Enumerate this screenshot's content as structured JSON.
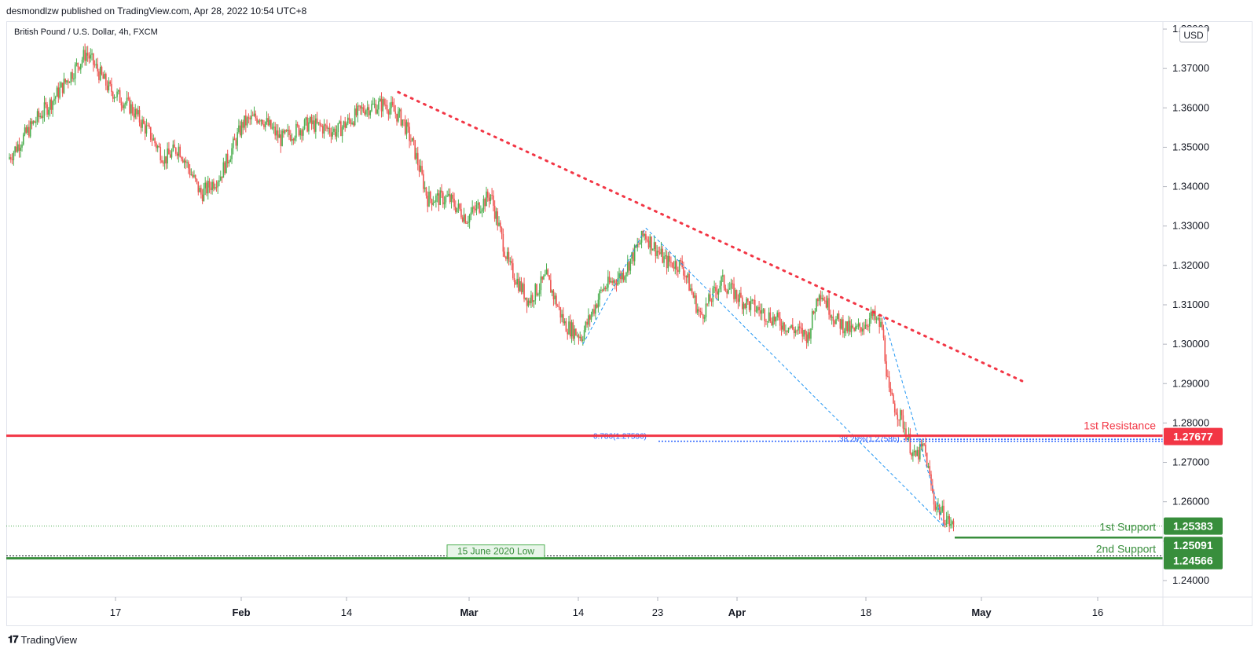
{
  "header": {
    "published": "desmondlzw published on TradingView.com, Apr 28, 2022 10:54 UTC+8"
  },
  "footer": {
    "brand": "TradingView",
    "logo_icon": "tradingview-logo-icon"
  },
  "currency_button": "USD",
  "chart_data": {
    "type": "candlestick",
    "title": "British Pound / U.S. Dollar, 4h, FXCM",
    "ylim": [
      1.2358,
      1.3818
    ],
    "y_ticks": [
      "1.38000",
      "1.37000",
      "1.36000",
      "1.35000",
      "1.34000",
      "1.33000",
      "1.32000",
      "1.31000",
      "1.30000",
      "1.29000",
      "1.28000",
      "1.27000",
      "1.26000",
      "1.25000",
      "1.24000"
    ],
    "x_ticks": [
      "17",
      "Feb",
      "14",
      "Mar",
      "14",
      "23",
      "Apr",
      "18",
      "May",
      "16"
    ],
    "anchors": [
      {
        "t": 0,
        "p": 1.347
      },
      {
        "t": 18,
        "p": 1.356
      },
      {
        "t": 32,
        "p": 1.362
      },
      {
        "t": 48,
        "p": 1.37
      },
      {
        "t": 56,
        "p": 1.374
      },
      {
        "t": 72,
        "p": 1.365
      },
      {
        "t": 88,
        "p": 1.36
      },
      {
        "t": 102,
        "p": 1.353
      },
      {
        "t": 112,
        "p": 1.347
      },
      {
        "t": 122,
        "p": 1.35
      },
      {
        "t": 138,
        "p": 1.338
      },
      {
        "t": 152,
        "p": 1.343
      },
      {
        "t": 168,
        "p": 1.356
      },
      {
        "t": 180,
        "p": 1.358
      },
      {
        "t": 195,
        "p": 1.352
      },
      {
        "t": 215,
        "p": 1.356
      },
      {
        "t": 235,
        "p": 1.354
      },
      {
        "t": 255,
        "p": 1.36
      },
      {
        "t": 270,
        "p": 1.361
      },
      {
        "t": 282,
        "p": 1.357
      },
      {
        "t": 290,
        "p": 1.35
      },
      {
        "t": 300,
        "p": 1.337
      },
      {
        "t": 315,
        "p": 1.337
      },
      {
        "t": 328,
        "p": 1.332
      },
      {
        "t": 345,
        "p": 1.338
      },
      {
        "t": 358,
        "p": 1.32
      },
      {
        "t": 372,
        "p": 1.311
      },
      {
        "t": 385,
        "p": 1.317
      },
      {
        "t": 398,
        "p": 1.305
      },
      {
        "t": 410,
        "p": 1.302
      },
      {
        "t": 425,
        "p": 1.314
      },
      {
        "t": 440,
        "p": 1.318
      },
      {
        "t": 455,
        "p": 1.328
      },
      {
        "t": 470,
        "p": 1.321
      },
      {
        "t": 482,
        "p": 1.32
      },
      {
        "t": 495,
        "p": 1.307
      },
      {
        "t": 510,
        "p": 1.316
      },
      {
        "t": 525,
        "p": 1.311
      },
      {
        "t": 545,
        "p": 1.307
      },
      {
        "t": 560,
        "p": 1.304
      },
      {
        "t": 572,
        "p": 1.302
      },
      {
        "t": 580,
        "p": 1.314
      },
      {
        "t": 592,
        "p": 1.306
      },
      {
        "t": 605,
        "p": 1.303
      },
      {
        "t": 618,
        "p": 1.307
      },
      {
        "t": 625,
        "p": 1.304
      },
      {
        "t": 630,
        "p": 1.287
      },
      {
        "t": 640,
        "p": 1.28
      },
      {
        "t": 648,
        "p": 1.271
      },
      {
        "t": 655,
        "p": 1.274
      },
      {
        "t": 662,
        "p": 1.26
      },
      {
        "t": 670,
        "p": 1.256
      },
      {
        "t": 675,
        "p": 1.2538
      }
    ],
    "candle_count": 676,
    "candle_colors": {
      "up": "#4caf50",
      "down": "#ef5350"
    },
    "levels": [
      {
        "label": "1st Resistance",
        "value": 1.27677,
        "price_tag": "1.27677",
        "color": "#f23645"
      },
      {
        "label": "1st Support",
        "value": 1.25383,
        "price_tag": "1.25383",
        "color": "#388e3c"
      },
      {
        "label": "",
        "value": 1.25091,
        "price_tag": "1.25091",
        "color": "#388e3c"
      },
      {
        "label": "2nd Support",
        "value": 1.24566,
        "price_tag": "1.24566",
        "color": "#388e3c"
      }
    ],
    "fib_labels": [
      {
        "text": "0.786(1.27536)",
        "value": 1.27536,
        "color": "#2962ff"
      },
      {
        "text": "38.20%(1.27586)",
        "value": 1.27586,
        "color": "#2962ff"
      }
    ],
    "annotation_low": {
      "text": "15 June 2020 Low",
      "value": 1.24566,
      "color": "#4caf50"
    },
    "trendline": {
      "color": "#f23645",
      "from": {
        "t": 278,
        "p": 1.364
      },
      "to": {
        "t": 725,
        "p": 1.2905
      }
    },
    "pattern_lines": [
      {
        "from": {
          "t": 410,
          "p": 1.3
        },
        "to": {
          "t": 455,
          "p": 1.3295
        }
      },
      {
        "from": {
          "t": 455,
          "p": 1.3295
        },
        "to": {
          "t": 668,
          "p": 1.2538
        }
      },
      {
        "from": {
          "t": 625,
          "p": 1.307
        },
        "to": {
          "t": 668,
          "p": 1.2538
        }
      }
    ]
  }
}
